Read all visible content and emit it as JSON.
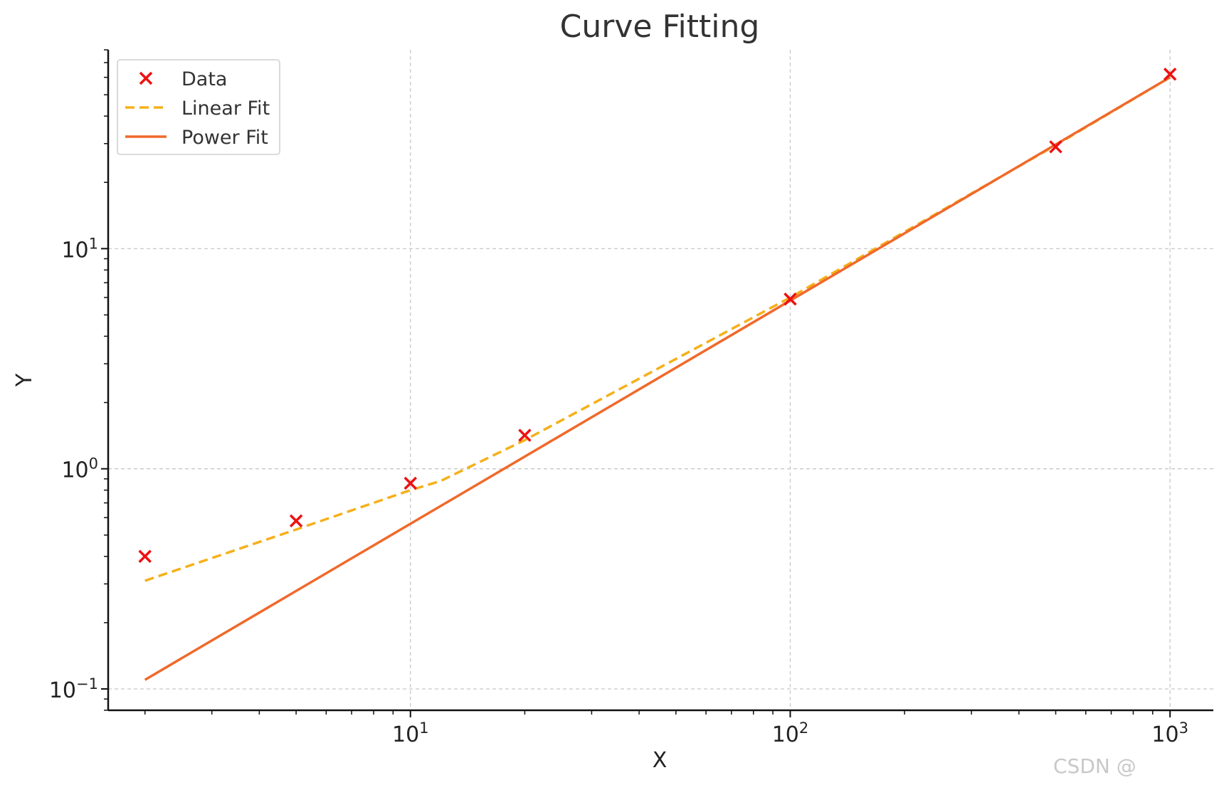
{
  "chart_data": {
    "type": "line",
    "title": "Curve Fitting",
    "xlabel": "X",
    "ylabel": "Y",
    "x_scale": "log",
    "y_scale": "log",
    "xlim": [
      1.6,
      1300
    ],
    "ylim": [
      0.08,
      80
    ],
    "grid": true,
    "legend_position": "top-left",
    "x_ticks": [
      {
        "value": 10,
        "base": "10",
        "exp": "1"
      },
      {
        "value": 100,
        "base": "10",
        "exp": "2"
      },
      {
        "value": 1000,
        "base": "10",
        "exp": "3"
      }
    ],
    "y_ticks": [
      {
        "value": 0.1,
        "base": "10",
        "exp": "−1"
      },
      {
        "value": 1,
        "base": "10",
        "exp": "0"
      },
      {
        "value": 10,
        "base": "10",
        "exp": "1"
      }
    ],
    "series": [
      {
        "name": "Data",
        "kind": "scatter",
        "marker": "x",
        "color": "#ee1111",
        "points": [
          [
            2,
            0.4
          ],
          [
            5,
            0.58
          ],
          [
            10,
            0.86
          ],
          [
            20,
            1.42
          ],
          [
            100,
            5.9
          ],
          [
            500,
            29
          ],
          [
            1000,
            62
          ]
        ]
      },
      {
        "name": "Linear Fit",
        "kind": "line",
        "dash": true,
        "color": "#f5b01a",
        "points": [
          [
            2,
            0.31
          ],
          [
            5,
            0.53
          ],
          [
            10,
            0.8
          ],
          [
            12,
            0.88
          ],
          [
            20,
            1.35
          ],
          [
            100,
            6.0
          ],
          [
            500,
            29.5
          ],
          [
            1000,
            60
          ]
        ]
      },
      {
        "name": "Power Fit",
        "kind": "line",
        "dash": false,
        "color": "#f0692a",
        "points": [
          [
            2,
            0.11
          ],
          [
            1000,
            60
          ]
        ]
      }
    ]
  },
  "watermark": "CSDN @"
}
